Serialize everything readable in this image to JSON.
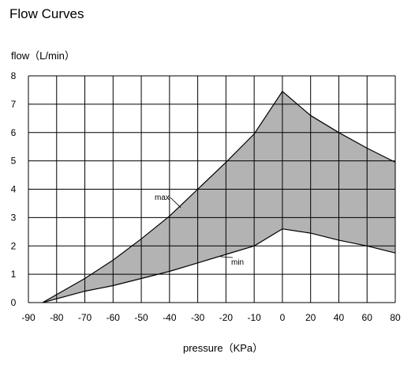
{
  "chart_data": {
    "type": "area",
    "title": "Flow Curves",
    "xlabel": "pressure（KPa）",
    "ylabel": "flow（L/min）",
    "x_ticks": [
      "-90",
      "-80",
      "-70",
      "-60",
      "-50",
      "-40",
      "-30",
      "-20",
      "-10",
      "0",
      "20",
      "40",
      "60",
      "80"
    ],
    "y_ticks": [
      "0",
      "1",
      "2",
      "3",
      "4",
      "5",
      "6",
      "7",
      "8"
    ],
    "ylim": [
      0,
      8
    ],
    "grid": true,
    "fill_color": "#b3b3b3",
    "line_color": "#000000",
    "series": [
      {
        "name": "max",
        "points": [
          {
            "x": -85,
            "y": 0
          },
          {
            "x": -70,
            "y": 0.85
          },
          {
            "x": -60,
            "y": 1.5
          },
          {
            "x": -50,
            "y": 2.25
          },
          {
            "x": -40,
            "y": 3.05
          },
          {
            "x": -30,
            "y": 4.0
          },
          {
            "x": -20,
            "y": 4.95
          },
          {
            "x": -10,
            "y": 5.95
          },
          {
            "x": 0,
            "y": 7.45
          },
          {
            "x": 20,
            "y": 6.6
          },
          {
            "x": 40,
            "y": 6.0
          },
          {
            "x": 60,
            "y": 5.45
          },
          {
            "x": 80,
            "y": 4.95
          }
        ]
      },
      {
        "name": "min",
        "points": [
          {
            "x": -85,
            "y": 0
          },
          {
            "x": -70,
            "y": 0.4
          },
          {
            "x": -60,
            "y": 0.6
          },
          {
            "x": -50,
            "y": 0.85
          },
          {
            "x": -40,
            "y": 1.1
          },
          {
            "x": -30,
            "y": 1.4
          },
          {
            "x": -20,
            "y": 1.7
          },
          {
            "x": -10,
            "y": 2.0
          },
          {
            "x": 0,
            "y": 2.6
          },
          {
            "x": 20,
            "y": 2.45
          },
          {
            "x": 40,
            "y": 2.2
          },
          {
            "x": 60,
            "y": 2.0
          },
          {
            "x": 80,
            "y": 1.75
          }
        ]
      }
    ]
  }
}
